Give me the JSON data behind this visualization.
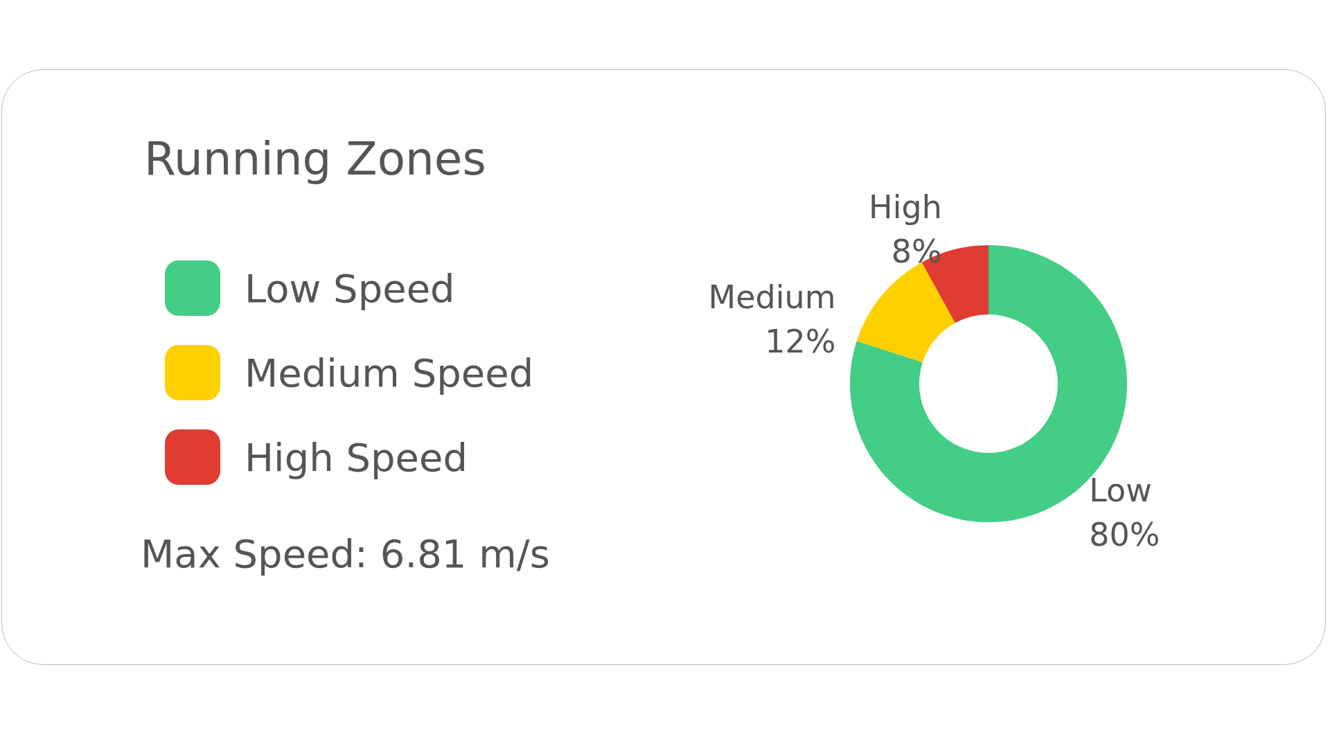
{
  "chart_data": {
    "type": "donut",
    "title": "Running Zones",
    "categories": [
      "Low Speed",
      "Medium Speed",
      "High Speed"
    ],
    "values": [
      80,
      12,
      8
    ],
    "colors": [
      "#43cd85",
      "#ffd000",
      "#e03c31"
    ],
    "value_labels": [
      "Low\n80%",
      "Medium\n12%",
      "High\n8%"
    ],
    "legend": "left",
    "annotations": [
      "Max Speed: 6.81 m/s"
    ]
  }
}
